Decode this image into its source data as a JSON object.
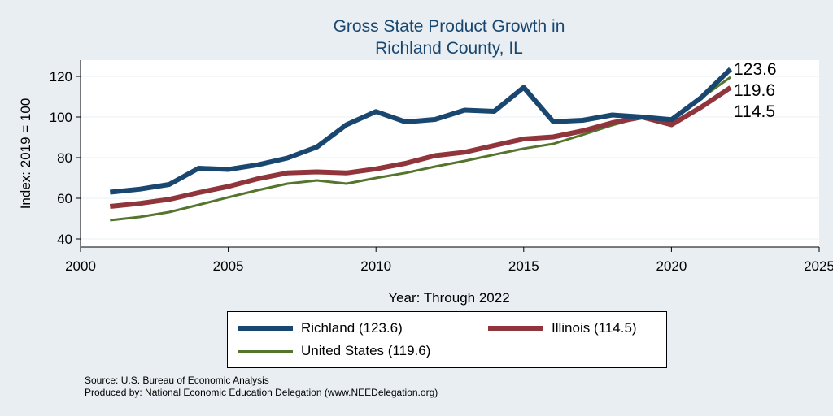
{
  "chart_data": {
    "type": "line",
    "title": [
      "Gross State Product Growth in",
      "Richland County, IL"
    ],
    "xlabel": "Year: Through 2022",
    "ylabel": "Index: 2019 = 100",
    "xlim": [
      2000,
      2025
    ],
    "ylim": [
      36,
      128
    ],
    "xticks": [
      2000,
      2005,
      2010,
      2015,
      2020,
      2025
    ],
    "yticks": [
      40,
      60,
      80,
      100,
      120
    ],
    "grid": "horizontal",
    "x": [
      2001,
      2002,
      2003,
      2004,
      2005,
      2006,
      2007,
      2008,
      2009,
      2010,
      2011,
      2012,
      2013,
      2014,
      2015,
      2016,
      2017,
      2018,
      2019,
      2020,
      2021,
      2022
    ],
    "series": [
      {
        "name": "Richland",
        "color": "#1a476f",
        "width": 6,
        "values": [
          63,
          64.5,
          66.8,
          74.8,
          74.2,
          76.5,
          79.8,
          85.3,
          96.2,
          102.7,
          97.6,
          98.8,
          103.4,
          102.8,
          114.6,
          97.7,
          98.4,
          101,
          100,
          98.7,
          109.5,
          123.6
        ],
        "end_label": "123.6"
      },
      {
        "name": "Illinois",
        "color": "#90353b",
        "width": 6,
        "values": [
          56,
          57.5,
          59.5,
          62.8,
          65.8,
          69.6,
          72.5,
          73,
          72.5,
          74.5,
          77.2,
          81,
          82.7,
          86,
          89.2,
          90.2,
          93.2,
          97.2,
          100,
          96.2,
          104.8,
          114.5
        ],
        "end_label": "114.5"
      },
      {
        "name": "United States",
        "color": "#55752f",
        "width": 3,
        "values": [
          49.2,
          50.8,
          53.2,
          56.8,
          60.5,
          64,
          67.2,
          68.8,
          67.2,
          70,
          72.5,
          75.6,
          78.4,
          81.5,
          84.5,
          86.8,
          91.3,
          96,
          100,
          98.8,
          109.3,
          119.6
        ],
        "end_label": "119.6"
      }
    ]
  },
  "legend": {
    "richland_label": "Richland  (123.6)",
    "illinois_label": "Illinois (114.5)",
    "us_label": "United States (119.6)"
  },
  "source": {
    "line1": "Source: U.S. Bureau of Economic Analysis",
    "line2": "Produced by: National Economic Education Delegation (www.NEEDelegation.org)"
  }
}
